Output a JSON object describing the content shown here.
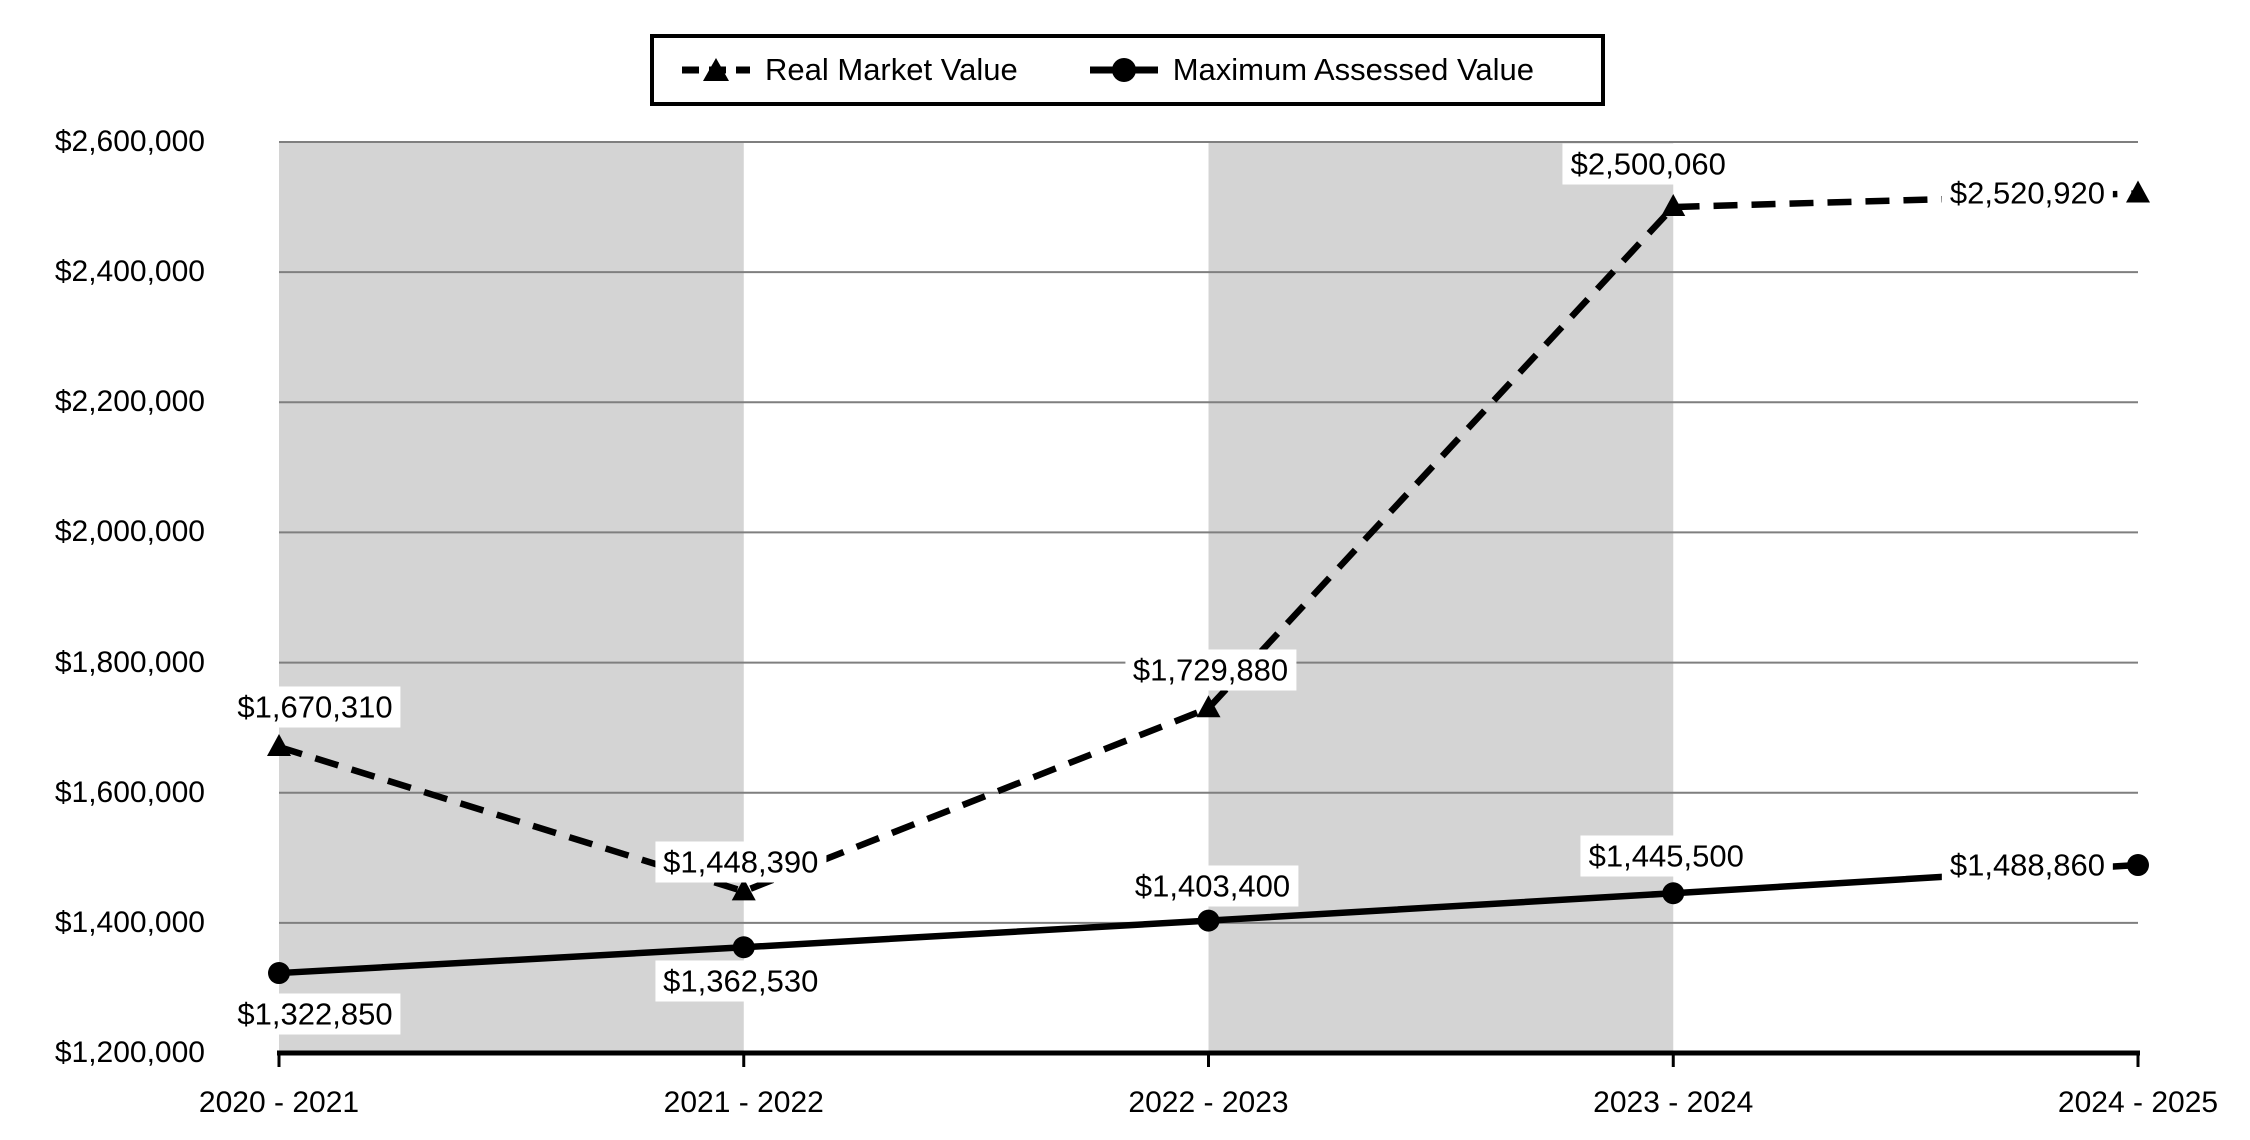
{
  "chart_data": {
    "type": "line",
    "title": "",
    "xlabel": "",
    "ylabel": "",
    "categories": [
      "2020 - 2021",
      "2021 - 2022",
      "2022 - 2023",
      "2023 - 2024",
      "2024 - 2025"
    ],
    "ylim": [
      1200000,
      2600000
    ],
    "y_tick_step": 200000,
    "grid": true,
    "legend_position": "top-center",
    "y_ticks": [
      {
        "value": 2600000,
        "label": "$2,600,000"
      },
      {
        "value": 2400000,
        "label": "$2,400,000"
      },
      {
        "value": 2200000,
        "label": "$2,200,000"
      },
      {
        "value": 2000000,
        "label": "$2,000,000"
      },
      {
        "value": 1800000,
        "label": "$1,800,000"
      },
      {
        "value": 1600000,
        "label": "$1,600,000"
      },
      {
        "value": 1400000,
        "label": "$1,400,000"
      },
      {
        "value": 1200000,
        "label": "$1,200,000"
      }
    ],
    "series": [
      {
        "name": "Real Market Value",
        "line_style": "dashed",
        "marker": "triangle",
        "values": [
          1670310,
          1448390,
          1729880,
          2500060,
          2520920
        ],
        "labels": [
          "$1,670,310",
          "$1,448,390",
          "$1,729,880",
          "$2,500,060",
          "$2,520,920"
        ]
      },
      {
        "name": "Maximum Assessed Value",
        "line_style": "solid",
        "marker": "circle",
        "values": [
          1322850,
          1362530,
          1403400,
          1445500,
          1488860
        ],
        "labels": [
          "$1,322,850",
          "$1,362,530",
          "$1,403,400",
          "$1,445,500",
          "$1,488,860"
        ]
      }
    ],
    "shaded_bands": [
      [
        0,
        1
      ],
      [
        2,
        3
      ]
    ],
    "colors": {
      "series": "#000000",
      "band": "#d4d4d4",
      "grid": "#7f7f7f",
      "axis": "#000000",
      "background": "#ffffff",
      "label_background": "#ffffff"
    }
  }
}
